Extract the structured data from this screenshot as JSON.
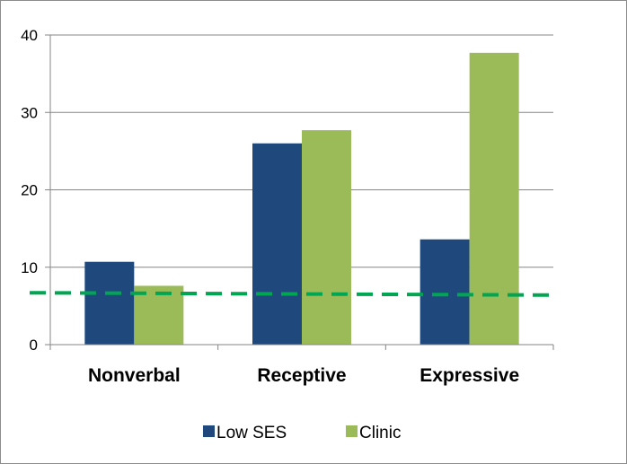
{
  "chart_data": {
    "type": "bar",
    "categories": [
      "Nonverbal",
      "Receptive",
      "Expressive"
    ],
    "series": [
      {
        "name": "Low SES",
        "values": [
          10.7,
          26.0,
          13.6
        ]
      },
      {
        "name": "Clinic",
        "values": [
          7.6,
          27.7,
          37.7
        ]
      }
    ],
    "reference_line": {
      "style": "dashed",
      "start_value": 6.7,
      "end_value": 6.4
    },
    "yticks": [
      "0",
      "10",
      "20",
      "30",
      "40"
    ],
    "ylim": [
      0,
      40
    ],
    "grid": true,
    "legend_position": "bottom",
    "title": "",
    "xlabel": "",
    "ylabel": ""
  },
  "colors": {
    "low_ses": "#1f497d",
    "clinic": "#9bbb59",
    "reference_line": "#00a651",
    "grid": "#868686",
    "axis": "#868686"
  }
}
